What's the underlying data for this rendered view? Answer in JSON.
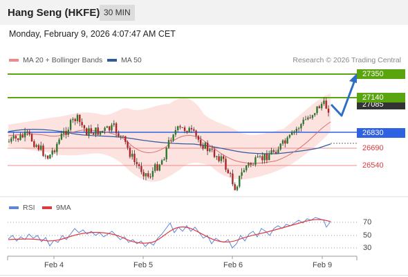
{
  "header": {
    "title": "Hang Seng (HKFE)",
    "timeframe": "30 MIN"
  },
  "datetime": "Monday, February 9, 2026 4:07:47 AM CET",
  "legend": [
    {
      "label": "MA 20 + Bollinger Bands",
      "color": "#f08a8a"
    },
    {
      "label": "MA 50",
      "color": "#2e5aa0"
    }
  ],
  "copyright": "Research © 2026 Trading Central",
  "price_levels": {
    "resistance2": {
      "label": "27350",
      "color": "#5aa50f"
    },
    "resistance1": {
      "label": "27140",
      "color": "#5aa50f"
    },
    "last": {
      "label": "27085",
      "color": "#333333"
    },
    "pivot": {
      "label": "26830",
      "color": "#2e62e0"
    },
    "support1": {
      "label": "26690",
      "color": "#e0383b"
    },
    "support2": {
      "label": "26540",
      "color": "#e0383b"
    }
  },
  "rsi_panel": {
    "legend": [
      {
        "label": "RSI",
        "color": "#5b85d9"
      },
      {
        "label": "9MA",
        "color": "#e0383b"
      }
    ],
    "levels": [
      "70",
      "50",
      "30"
    ]
  },
  "x_axis": {
    "labels": [
      "Feb 4",
      "Feb 5",
      "Feb 6",
      "Feb 9"
    ]
  },
  "icons": {
    "forecast_arrow": "arrow-up-icon"
  }
}
